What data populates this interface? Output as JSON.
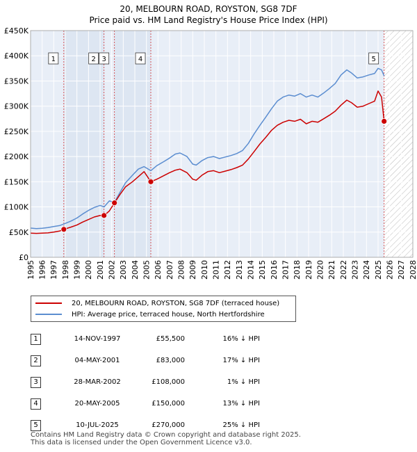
{
  "header": {
    "title_line1": "20, MELBOURN ROAD, ROYSTON, SG8 7DF",
    "title_line2": "Price paid vs. HM Land Registry's House Price Index (HPI)"
  },
  "legend": {
    "property_label": "20, MELBOURN ROAD, ROYSTON, SG8 7DF (terraced house)",
    "hpi_label": "HPI: Average price, terraced house, North Hertfordshire"
  },
  "colors": {
    "property_line": "#cc0000",
    "hpi_line": "#5b8dd0",
    "band": "#dde6f2",
    "grid": "#ffffff",
    "plot_bg": "#e8eef7"
  },
  "sales": [
    {
      "num": "1",
      "date": "14-NOV-1997",
      "price": "£55,500",
      "hpi": "16% ↓ HPI"
    },
    {
      "num": "2",
      "date": "04-MAY-2001",
      "price": "£83,000",
      "hpi": "17% ↓ HPI"
    },
    {
      "num": "3",
      "date": "28-MAR-2002",
      "price": "£108,000",
      "hpi": "1% ↓ HPI"
    },
    {
      "num": "4",
      "date": "20-MAY-2005",
      "price": "£150,000",
      "hpi": "13% ↓ HPI"
    },
    {
      "num": "5",
      "date": "10-JUL-2025",
      "price": "£270,000",
      "hpi": "25% ↓ HPI"
    }
  ],
  "footer": {
    "line1": "Contains HM Land Registry data © Crown copyright and database right 2025.",
    "line2": "This data is licensed under the Open Government Licence v3.0."
  },
  "chart_data": {
    "type": "line",
    "title": "20, MELBOURN ROAD, ROYSTON, SG8 7DF — Price paid vs. HM Land Registry's House Price Index (HPI)",
    "xlabel": "",
    "ylabel": "",
    "xlim": [
      1995,
      2028
    ],
    "ylim": [
      0,
      450000
    ],
    "x_ticks": [
      1995,
      1996,
      1997,
      1998,
      1999,
      2000,
      2001,
      2002,
      2003,
      2004,
      2005,
      2006,
      2007,
      2008,
      2009,
      2010,
      2011,
      2012,
      2013,
      2014,
      2015,
      2016,
      2017,
      2018,
      2019,
      2020,
      2021,
      2022,
      2023,
      2024,
      2025,
      2026,
      2027,
      2028
    ],
    "y_ticks": [
      0,
      50000,
      100000,
      150000,
      200000,
      250000,
      300000,
      350000,
      400000,
      450000
    ],
    "y_tick_labels": [
      "£0",
      "£50K",
      "£100K",
      "£150K",
      "£200K",
      "£250K",
      "£300K",
      "£350K",
      "£400K",
      "£450K"
    ],
    "future_hatch_from": 2025.52,
    "sale_markers": [
      {
        "num": "1",
        "x": 1997.87,
        "y": 55500
      },
      {
        "num": "2",
        "x": 2001.34,
        "y": 83000
      },
      {
        "num": "3",
        "x": 2002.24,
        "y": 108000
      },
      {
        "num": "4",
        "x": 2005.38,
        "y": 150000
      },
      {
        "num": "5",
        "x": 2025.52,
        "y": 270000
      }
    ],
    "bands": [
      [
        1997.87,
        2001.34
      ],
      [
        2002.24,
        2005.38
      ]
    ],
    "series": [
      {
        "name": "HPI: Average price, terraced house, North Hertfordshire",
        "x": [
          1995.0,
          1995.5,
          1996.0,
          1996.5,
          1997.0,
          1997.5,
          1997.87,
          1998.5,
          1999.0,
          1999.5,
          2000.0,
          2000.5,
          2001.0,
          2001.34,
          2001.8,
          2002.24,
          2002.7,
          2003.2,
          2003.8,
          2004.3,
          2004.8,
          2005.38,
          2005.9,
          2006.5,
          2007.0,
          2007.5,
          2007.9,
          2008.5,
          2009.0,
          2009.3,
          2009.8,
          2010.3,
          2010.8,
          2011.3,
          2011.8,
          2012.3,
          2012.8,
          2013.3,
          2013.8,
          2014.3,
          2014.8,
          2015.3,
          2015.8,
          2016.3,
          2016.8,
          2017.3,
          2017.8,
          2018.3,
          2018.8,
          2019.3,
          2019.8,
          2020.3,
          2020.8,
          2021.3,
          2021.8,
          2022.3,
          2022.7,
          2023.2,
          2023.7,
          2024.2,
          2024.7,
          2025.0,
          2025.3,
          2025.52
        ],
        "y": [
          58000,
          57000,
          57500,
          59000,
          61000,
          63000,
          66000,
          72000,
          78000,
          86000,
          93000,
          99000,
          103000,
          100000,
          112000,
          109000,
          128000,
          148000,
          163000,
          175000,
          180000,
          172000,
          182000,
          190000,
          197000,
          205000,
          207000,
          200000,
          185000,
          183000,
          192000,
          198000,
          200000,
          196000,
          199000,
          202000,
          206000,
          212000,
          226000,
          245000,
          262000,
          278000,
          295000,
          310000,
          318000,
          322000,
          320000,
          325000,
          318000,
          322000,
          318000,
          326000,
          335000,
          345000,
          362000,
          372000,
          366000,
          356000,
          358000,
          362000,
          365000,
          375000,
          372000,
          360000
        ]
      },
      {
        "name": "20, MELBOURN ROAD, ROYSTON, SG8 7DF (terraced house)",
        "x": [
          1995.0,
          1995.5,
          1996.0,
          1996.5,
          1997.0,
          1997.5,
          1997.87,
          1998.5,
          1999.0,
          1999.5,
          2000.0,
          2000.5,
          2001.0,
          2001.34,
          2001.8,
          2002.24,
          2002.7,
          2003.2,
          2003.8,
          2004.3,
          2004.8,
          2005.38,
          2005.9,
          2006.5,
          2007.0,
          2007.5,
          2007.9,
          2008.5,
          2009.0,
          2009.3,
          2009.8,
          2010.3,
          2010.8,
          2011.3,
          2011.8,
          2012.3,
          2012.8,
          2013.3,
          2013.8,
          2014.3,
          2014.8,
          2015.3,
          2015.8,
          2016.3,
          2016.8,
          2017.3,
          2017.8,
          2018.3,
          2018.8,
          2019.3,
          2019.8,
          2020.3,
          2020.8,
          2021.3,
          2021.8,
          2022.3,
          2022.7,
          2023.2,
          2023.7,
          2024.2,
          2024.7,
          2025.0,
          2025.3,
          2025.52
        ],
        "y": [
          48000,
          47500,
          48000,
          48500,
          50000,
          52000,
          55500,
          60000,
          64000,
          70000,
          75000,
          80000,
          83000,
          83000,
          92000,
          108000,
          124000,
          140000,
          150000,
          160000,
          170000,
          150000,
          155000,
          162000,
          168000,
          173000,
          175000,
          168000,
          155000,
          153000,
          163000,
          170000,
          172000,
          168000,
          171000,
          174000,
          178000,
          183000,
          195000,
          210000,
          225000,
          238000,
          252000,
          262000,
          268000,
          272000,
          270000,
          274000,
          265000,
          270000,
          268000,
          275000,
          282000,
          290000,
          302000,
          312000,
          307000,
          298000,
          300000,
          305000,
          310000,
          330000,
          318000,
          270000
        ]
      }
    ]
  }
}
